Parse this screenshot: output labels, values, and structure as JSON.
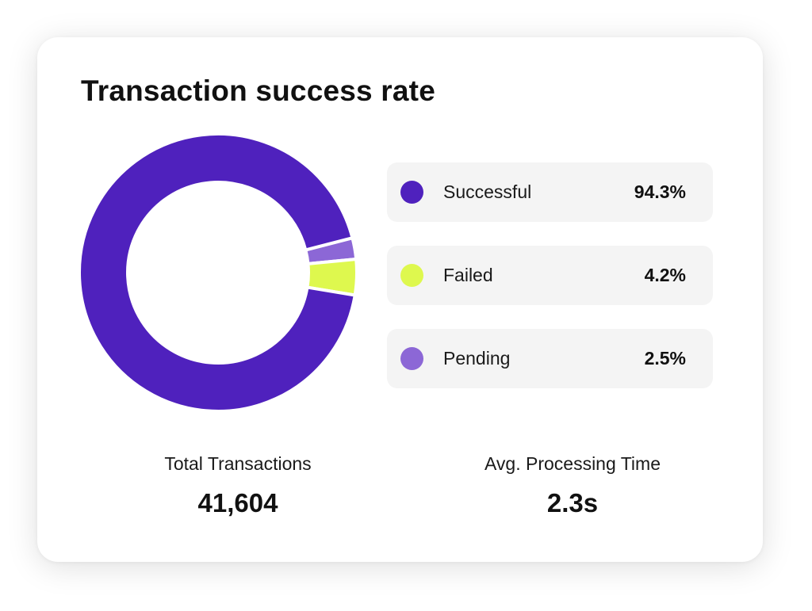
{
  "title": "Transaction success rate",
  "chart_data": {
    "type": "pie",
    "style": "donut",
    "categories": [
      "Successful",
      "Failed",
      "Pending"
    ],
    "values": [
      94.3,
      4.2,
      2.5
    ],
    "value_labels": [
      "94.3%",
      "4.2%",
      "2.5%"
    ],
    "colors": [
      "#4f21bd",
      "#def84e",
      "#8c67d6"
    ],
    "legend_placement": "right"
  },
  "stats": {
    "total_label": "Total Transactions",
    "total_value": "41,604",
    "avg_label": "Avg. Processing Time",
    "avg_value": "2.3s"
  }
}
